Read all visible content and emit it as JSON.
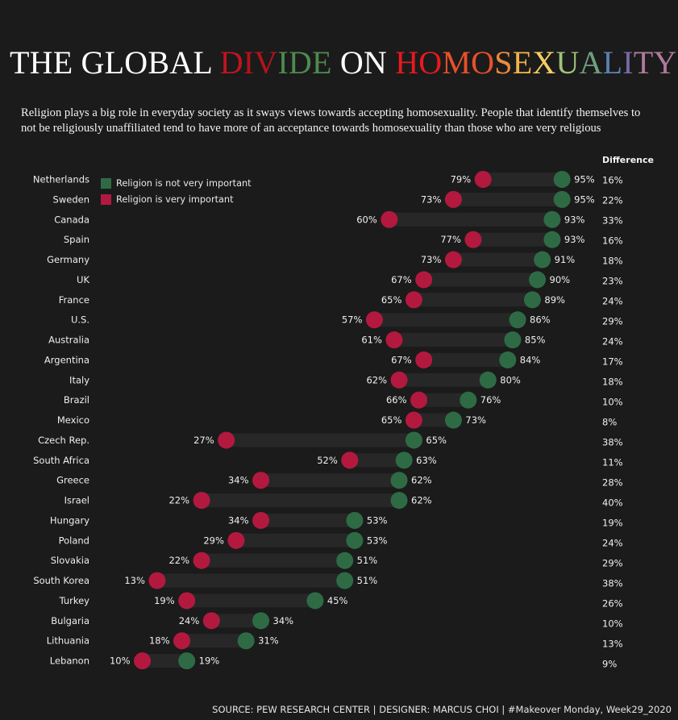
{
  "title": {
    "parts": [
      {
        "text": "THE GLOBAL ",
        "color": "#ffffff"
      },
      {
        "text": "D",
        "color": "#c0151f"
      },
      {
        "text": "IV",
        "color": "#b5121b"
      },
      {
        "text": "IDE",
        "color": "#4f8a4f"
      },
      {
        "text": " ON ",
        "color": "#ffffff"
      },
      {
        "text": "HO",
        "color": "#e8191f"
      },
      {
        "text": "MO",
        "color": "#e8502a"
      },
      {
        "text": "S",
        "color": "#ec8b3a"
      },
      {
        "text": "E",
        "color": "#f2b24b"
      },
      {
        "text": "X",
        "color": "#f5cf62"
      },
      {
        "text": "U",
        "color": "#9fc27a"
      },
      {
        "text": "A",
        "color": "#6f9f7f"
      },
      {
        "text": "L",
        "color": "#5b82b0"
      },
      {
        "text": "I",
        "color": "#7a6aa8"
      },
      {
        "text": "TY",
        "color": "#b07a9c"
      }
    ]
  },
  "subtitle": "Religion plays a big role in everyday society as it sways views towards accepting homosexuality. People that identify themselves to not be religiously unaffiliated tend to have more of an acceptance towards homosexuality than those who are very religious",
  "difference_header": "Difference",
  "source": "SOURCE: PEW RESEARCH CENTER | DESIGNER: MARCUS CHOI | #Makeover Monday, Week29_2020",
  "colors": {
    "not_important": "#2e6b45",
    "very_important": "#b3193f",
    "track": "#272727"
  },
  "legend": [
    {
      "label": "Religion is not very important",
      "color": "#2e6b45"
    },
    {
      "label": "Religion is very important",
      "color": "#b3193f"
    }
  ],
  "chart_data": {
    "type": "dumbbell",
    "unit": "%",
    "series": [
      {
        "name": "Religion is not very important",
        "key": "not_important"
      },
      {
        "name": "Religion is very important",
        "key": "very_important"
      }
    ],
    "rows": [
      {
        "country": "Netherlands",
        "very_important": 79,
        "not_important": 95,
        "difference": 16
      },
      {
        "country": "Sweden",
        "very_important": 73,
        "not_important": 95,
        "difference": 22
      },
      {
        "country": "Canada",
        "very_important": 60,
        "not_important": 93,
        "difference": 33
      },
      {
        "country": "Spain",
        "very_important": 77,
        "not_important": 93,
        "difference": 16
      },
      {
        "country": "Germany",
        "very_important": 73,
        "not_important": 91,
        "difference": 18
      },
      {
        "country": "UK",
        "very_important": 67,
        "not_important": 90,
        "difference": 23
      },
      {
        "country": "France",
        "very_important": 65,
        "not_important": 89,
        "difference": 24
      },
      {
        "country": "U.S.",
        "very_important": 57,
        "not_important": 86,
        "difference": 29
      },
      {
        "country": "Australia",
        "very_important": 61,
        "not_important": 85,
        "difference": 24
      },
      {
        "country": "Argentina",
        "very_important": 67,
        "not_important": 84,
        "difference": 17
      },
      {
        "country": "Italy",
        "very_important": 62,
        "not_important": 80,
        "difference": 18
      },
      {
        "country": "Brazil",
        "very_important": 66,
        "not_important": 76,
        "difference": 10
      },
      {
        "country": "Mexico",
        "very_important": 65,
        "not_important": 73,
        "difference": 8
      },
      {
        "country": "Czech Rep.",
        "very_important": 27,
        "not_important": 65,
        "difference": 38
      },
      {
        "country": "South Africa",
        "very_important": 52,
        "not_important": 63,
        "difference": 11
      },
      {
        "country": "Greece",
        "very_important": 34,
        "not_important": 62,
        "difference": 28
      },
      {
        "country": "Israel",
        "very_important": 22,
        "not_important": 62,
        "difference": 40
      },
      {
        "country": "Hungary",
        "very_important": 34,
        "not_important": 53,
        "difference": 19
      },
      {
        "country": "Poland",
        "very_important": 29,
        "not_important": 53,
        "difference": 24
      },
      {
        "country": "Slovakia",
        "very_important": 22,
        "not_important": 51,
        "difference": 29
      },
      {
        "country": "South Korea",
        "very_important": 13,
        "not_important": 51,
        "difference": 38
      },
      {
        "country": "Turkey",
        "very_important": 19,
        "not_important": 45,
        "difference": 26
      },
      {
        "country": "Bulgaria",
        "very_important": 24,
        "not_important": 34,
        "difference": 10
      },
      {
        "country": "Lithuania",
        "very_important": 18,
        "not_important": 31,
        "difference": 13
      },
      {
        "country": "Lebanon",
        "very_important": 10,
        "not_important": 19,
        "difference": 9
      }
    ]
  }
}
